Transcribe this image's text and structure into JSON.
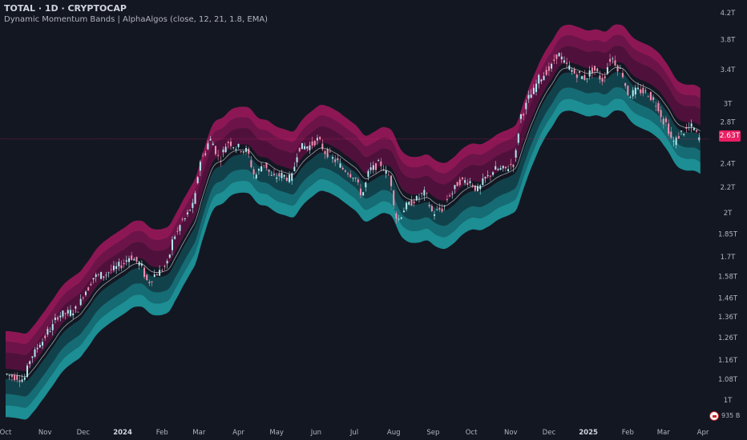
{
  "header": {
    "symbol_line": "TOTAL · 1D · CRYPTOCAP",
    "indicator_line": "Dynamic Momentum Bands | AlphaAlgos (close, 12, 21, 1.8, EMA)"
  },
  "price_tag": "2.63T",
  "volume_badge": "935 B",
  "colors": {
    "background": "#131722",
    "upper_band": "#c2185b",
    "lower_band": "#26a6a6",
    "candle_up": "#b2ebf2",
    "candle_down": "#f48fb1",
    "price_line": "#e91e63",
    "text": "#b2b5be"
  },
  "chart_data": {
    "type": "line",
    "title": "TOTAL · 1D · CRYPTOCAP",
    "y_scale": "log",
    "ylim": [
      0.92,
      4.3
    ],
    "y_ticks": [
      {
        "value": 4.2,
        "label": "4.2T"
      },
      {
        "value": 3.8,
        "label": "3.8T"
      },
      {
        "value": 3.4,
        "label": "3.4T"
      },
      {
        "value": 3.0,
        "label": "3T"
      },
      {
        "value": 2.8,
        "label": "2.8T"
      },
      {
        "value": 2.4,
        "label": "2.4T"
      },
      {
        "value": 2.2,
        "label": "2.2T"
      },
      {
        "value": 2.0,
        "label": "2T"
      },
      {
        "value": 1.85,
        "label": "1.85T"
      },
      {
        "value": 1.7,
        "label": "1.7T"
      },
      {
        "value": 1.58,
        "label": "1.58T"
      },
      {
        "value": 1.46,
        "label": "1.46T"
      },
      {
        "value": 1.36,
        "label": "1.36T"
      },
      {
        "value": 1.26,
        "label": "1.26T"
      },
      {
        "value": 1.16,
        "label": "1.16T"
      },
      {
        "value": 1.08,
        "label": "1.08T"
      },
      {
        "value": 1.0,
        "label": "1T"
      }
    ],
    "x_ticks": [
      {
        "date": "2023-10-01",
        "label": "Oct",
        "major": false
      },
      {
        "date": "2023-11-01",
        "label": "Nov",
        "major": false
      },
      {
        "date": "2023-12-01",
        "label": "Dec",
        "major": false
      },
      {
        "date": "2024-01-01",
        "label": "2024",
        "major": true
      },
      {
        "date": "2024-02-01",
        "label": "Feb",
        "major": false
      },
      {
        "date": "2024-03-01",
        "label": "Mar",
        "major": false
      },
      {
        "date": "2024-04-01",
        "label": "Apr",
        "major": false
      },
      {
        "date": "2024-05-01",
        "label": "May",
        "major": false
      },
      {
        "date": "2024-06-01",
        "label": "Jun",
        "major": false
      },
      {
        "date": "2024-07-01",
        "label": "Jul",
        "major": false
      },
      {
        "date": "2024-08-01",
        "label": "Aug",
        "major": false
      },
      {
        "date": "2024-09-01",
        "label": "Sep",
        "major": false
      },
      {
        "date": "2024-10-01",
        "label": "Oct",
        "major": false
      },
      {
        "date": "2024-11-01",
        "label": "Nov",
        "major": false
      },
      {
        "date": "2024-12-01",
        "label": "Dec",
        "major": false
      },
      {
        "date": "2025-01-01",
        "label": "2025",
        "major": true
      },
      {
        "date": "2025-02-01",
        "label": "Feb",
        "major": false
      },
      {
        "date": "2025-03-01",
        "label": "Mar",
        "major": false
      },
      {
        "date": "2025-04-01",
        "label": "Apr",
        "major": false
      }
    ],
    "x_range": [
      "2023-10-01",
      "2025-04-01"
    ],
    "last_price": 2.63,
    "series": [
      {
        "name": "close",
        "points": [
          [
            "2023-10-01",
            1.1
          ],
          [
            "2023-10-08",
            1.09
          ],
          [
            "2023-10-15",
            1.08
          ],
          [
            "2023-10-22",
            1.18
          ],
          [
            "2023-10-29",
            1.24
          ],
          [
            "2023-11-05",
            1.3
          ],
          [
            "2023-11-12",
            1.37
          ],
          [
            "2023-11-19",
            1.38
          ],
          [
            "2023-11-26",
            1.4
          ],
          [
            "2023-12-03",
            1.5
          ],
          [
            "2023-12-10",
            1.58
          ],
          [
            "2023-12-17",
            1.59
          ],
          [
            "2023-12-24",
            1.62
          ],
          [
            "2023-12-31",
            1.65
          ],
          [
            "2024-01-07",
            1.7
          ],
          [
            "2024-01-14",
            1.66
          ],
          [
            "2024-01-21",
            1.55
          ],
          [
            "2024-01-28",
            1.6
          ],
          [
            "2024-02-04",
            1.64
          ],
          [
            "2024-02-11",
            1.84
          ],
          [
            "2024-02-18",
            1.95
          ],
          [
            "2024-02-25",
            2.05
          ],
          [
            "2024-03-03",
            2.45
          ],
          [
            "2024-03-10",
            2.62
          ],
          [
            "2024-03-17",
            2.45
          ],
          [
            "2024-03-24",
            2.6
          ],
          [
            "2024-03-31",
            2.55
          ],
          [
            "2024-04-07",
            2.52
          ],
          [
            "2024-04-14",
            2.3
          ],
          [
            "2024-04-21",
            2.4
          ],
          [
            "2024-04-28",
            2.28
          ],
          [
            "2024-05-05",
            2.3
          ],
          [
            "2024-05-12",
            2.27
          ],
          [
            "2024-05-19",
            2.55
          ],
          [
            "2024-05-26",
            2.56
          ],
          [
            "2024-06-02",
            2.62
          ],
          [
            "2024-06-09",
            2.5
          ],
          [
            "2024-06-16",
            2.43
          ],
          [
            "2024-06-23",
            2.35
          ],
          [
            "2024-06-30",
            2.3
          ],
          [
            "2024-07-07",
            2.15
          ],
          [
            "2024-07-14",
            2.35
          ],
          [
            "2024-07-21",
            2.4
          ],
          [
            "2024-07-28",
            2.3
          ],
          [
            "2024-08-04",
            1.95
          ],
          [
            "2024-08-11",
            2.05
          ],
          [
            "2024-08-18",
            2.1
          ],
          [
            "2024-08-25",
            2.15
          ],
          [
            "2024-09-01",
            2.0
          ],
          [
            "2024-09-08",
            2.03
          ],
          [
            "2024-09-15",
            2.15
          ],
          [
            "2024-09-22",
            2.25
          ],
          [
            "2024-09-29",
            2.25
          ],
          [
            "2024-10-06",
            2.18
          ],
          [
            "2024-10-13",
            2.28
          ],
          [
            "2024-10-20",
            2.35
          ],
          [
            "2024-10-27",
            2.35
          ],
          [
            "2024-11-03",
            2.4
          ],
          [
            "2024-11-10",
            2.9
          ],
          [
            "2024-11-17",
            3.1
          ],
          [
            "2024-11-24",
            3.3
          ],
          [
            "2024-12-01",
            3.4
          ],
          [
            "2024-12-08",
            3.6
          ],
          [
            "2024-12-15",
            3.45
          ],
          [
            "2024-12-22",
            3.35
          ],
          [
            "2024-12-29",
            3.3
          ],
          [
            "2025-01-05",
            3.4
          ],
          [
            "2025-01-12",
            3.28
          ],
          [
            "2025-01-19",
            3.55
          ],
          [
            "2025-01-26",
            3.4
          ],
          [
            "2025-02-02",
            3.1
          ],
          [
            "2025-02-09",
            3.15
          ],
          [
            "2025-02-16",
            3.12
          ],
          [
            "2025-02-23",
            3.0
          ],
          [
            "2025-03-02",
            2.8
          ],
          [
            "2025-03-09",
            2.6
          ],
          [
            "2025-03-16",
            2.7
          ],
          [
            "2025-03-23",
            2.75
          ],
          [
            "2025-03-30",
            2.63
          ]
        ]
      }
    ]
  }
}
